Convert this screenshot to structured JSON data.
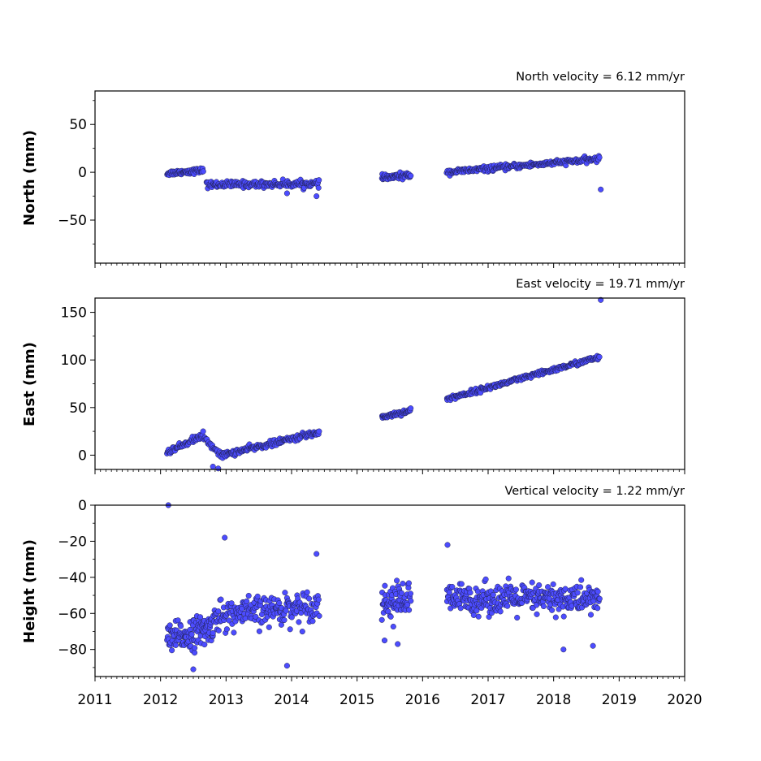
{
  "chart_data": [
    {
      "type": "scatter",
      "ylabel": "North (mm)",
      "annotation": "North velocity = 6.12 mm/yr",
      "xlim": [
        2011,
        2020
      ],
      "ylim": [
        -95,
        85
      ],
      "yticks": [
        -50,
        0,
        50
      ],
      "ytick_labels": [
        "−50",
        "0",
        "50"
      ],
      "marker_color": "#4c4cff",
      "segments": [
        {
          "x_start": 2012.1,
          "x_end": 2012.65,
          "y_start": -1,
          "y_end": 2,
          "spread": 2.2,
          "n": 70
        },
        {
          "x_start": 2012.7,
          "x_end": 2014.42,
          "y_start": -13,
          "y_end": -12,
          "spread": 2.8,
          "n": 190
        },
        {
          "x_start": 2015.38,
          "x_end": 2015.82,
          "y_start": -6,
          "y_end": -3,
          "spread": 2.5,
          "n": 60
        },
        {
          "x_start": 2016.37,
          "x_end": 2018.7,
          "y_start": 0,
          "y_end": 14,
          "spread": 2.2,
          "n": 260
        }
      ],
      "outliers": [
        [
          2014.38,
          -25
        ],
        [
          2013.93,
          -22
        ],
        [
          2018.72,
          -18
        ]
      ]
    },
    {
      "type": "scatter",
      "ylabel": "East (mm)",
      "annotation": "East velocity = 19.71 mm/yr",
      "xlim": [
        2011,
        2020
      ],
      "ylim": [
        -15,
        165
      ],
      "yticks": [
        0,
        50,
        100,
        150
      ],
      "ytick_labels": [
        "0",
        "50",
        "100",
        "150"
      ],
      "marker_color": "#4c4cff",
      "segments": [
        {
          "x_start": 2012.1,
          "x_end": 2012.62,
          "y_start": 3,
          "y_end": 20,
          "spread": 2.5,
          "n": 60
        },
        {
          "x_start": 2012.62,
          "x_end": 2012.95,
          "y_start": 20,
          "y_end": -1,
          "spread": 2.5,
          "n": 30
        },
        {
          "x_start": 2012.95,
          "x_end": 2014.42,
          "y_start": 0,
          "y_end": 24,
          "spread": 2.5,
          "n": 170
        },
        {
          "x_start": 2015.38,
          "x_end": 2015.82,
          "y_start": 40,
          "y_end": 47,
          "spread": 2.0,
          "n": 60
        },
        {
          "x_start": 2016.37,
          "x_end": 2018.7,
          "y_start": 59,
          "y_end": 103,
          "spread": 2.0,
          "n": 260
        }
      ],
      "outliers": [
        [
          2012.8,
          -12
        ],
        [
          2012.88,
          -14
        ],
        [
          2012.65,
          25
        ],
        [
          2018.72,
          163
        ]
      ]
    },
    {
      "type": "scatter",
      "ylabel": "Height (mm)",
      "annotation": "Vertical velocity = 1.22 mm/yr",
      "xlim": [
        2011,
        2020
      ],
      "ylim": [
        -95,
        0
      ],
      "yticks": [
        -80,
        -60,
        -40,
        -20,
        0
      ],
      "ytick_labels": [
        "−80",
        "−60",
        "−40",
        "−20",
        "0"
      ],
      "marker_color": "#4c4cff",
      "xticks": [
        2011,
        2012,
        2013,
        2014,
        2015,
        2016,
        2017,
        2018,
        2019,
        2020
      ],
      "xtick_labels": [
        "2011",
        "2012",
        "2013",
        "2014",
        "2015",
        "2016",
        "2017",
        "2018",
        "2019",
        "2020"
      ],
      "segments": [
        {
          "x_start": 2012.1,
          "x_end": 2012.8,
          "y_start": -75,
          "y_end": -68,
          "spread": 7,
          "n": 120
        },
        {
          "x_start": 2012.8,
          "x_end": 2014.42,
          "y_start": -62,
          "y_end": -55,
          "spread": 7,
          "n": 200
        },
        {
          "x_start": 2015.38,
          "x_end": 2015.82,
          "y_start": -54,
          "y_end": -52,
          "spread": 8,
          "n": 70
        },
        {
          "x_start": 2016.37,
          "x_end": 2018.7,
          "y_start": -52,
          "y_end": -52,
          "spread": 7,
          "n": 320
        }
      ],
      "outliers": [
        [
          2012.12,
          0
        ],
        [
          2012.98,
          -18
        ],
        [
          2014.38,
          -27
        ],
        [
          2013.93,
          -89
        ],
        [
          2016.38,
          -22
        ],
        [
          2015.42,
          -75
        ],
        [
          2015.62,
          -77
        ],
        [
          2018.6,
          -78
        ],
        [
          2018.15,
          -80
        ],
        [
          2012.5,
          -91
        ]
      ]
    }
  ]
}
